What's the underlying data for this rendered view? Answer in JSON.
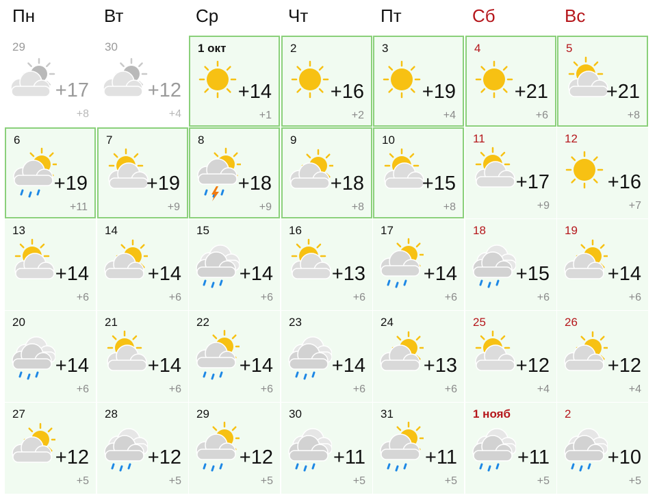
{
  "weekdays": [
    {
      "label": "Пн",
      "weekend": false
    },
    {
      "label": "Вт",
      "weekend": false
    },
    {
      "label": "Ср",
      "weekend": false
    },
    {
      "label": "Чт",
      "weekend": false
    },
    {
      "label": "Пт",
      "weekend": false
    },
    {
      "label": "Сб",
      "weekend": true
    },
    {
      "label": "Вс",
      "weekend": true
    }
  ],
  "colors": {
    "weekend": "#b5161b",
    "highlight_border": "#8ad07a",
    "cell_bg": "#f1fbf1",
    "sun": "#f7c113",
    "rain": "#1e88e5",
    "lightning": "#f07a10"
  },
  "days": [
    {
      "date": "29",
      "icon": "partly-cloudy-icon",
      "max": "+17",
      "min": "+8",
      "past": true
    },
    {
      "date": "30",
      "icon": "partly-cloudy-icon",
      "max": "+12",
      "min": "+4",
      "past": true
    },
    {
      "date": "1 окт",
      "icon": "sun-icon",
      "max": "+14",
      "min": "+1",
      "bold": true,
      "highlight": true,
      "today": true
    },
    {
      "date": "2",
      "icon": "sun-icon",
      "max": "+16",
      "min": "+2",
      "highlight": true
    },
    {
      "date": "3",
      "icon": "sun-icon",
      "max": "+19",
      "min": "+4",
      "highlight": true
    },
    {
      "date": "4",
      "icon": "sun-icon",
      "max": "+21",
      "min": "+6",
      "weekend": true,
      "highlight": true
    },
    {
      "date": "5",
      "icon": "sun-cloud-icon",
      "max": "+21",
      "min": "+8",
      "weekend": true,
      "highlight": true
    },
    {
      "date": "6",
      "icon": "cloud-sun-rain-icon",
      "max": "+19",
      "min": "+11",
      "highlight": true
    },
    {
      "date": "7",
      "icon": "sun-cloud-icon",
      "max": "+19",
      "min": "+9",
      "highlight": true
    },
    {
      "date": "8",
      "icon": "cloud-sun-thunder-rain-icon",
      "max": "+18",
      "min": "+9",
      "highlight": true
    },
    {
      "date": "9",
      "icon": "cloud-sun-icon",
      "max": "+18",
      "min": "+8",
      "highlight": true
    },
    {
      "date": "10",
      "icon": "sun-cloud-icon",
      "max": "+15",
      "min": "+8",
      "highlight": true
    },
    {
      "date": "11",
      "icon": "sun-cloud-icon",
      "max": "+17",
      "min": "+9",
      "weekend": true
    },
    {
      "date": "12",
      "icon": "sun-icon",
      "max": "+16",
      "min": "+7",
      "weekend": true
    },
    {
      "date": "13",
      "icon": "sun-cloud-icon",
      "max": "+14",
      "min": "+6"
    },
    {
      "date": "14",
      "icon": "cloud-sun-icon",
      "max": "+14",
      "min": "+6"
    },
    {
      "date": "15",
      "icon": "cloud-rain-icon",
      "max": "+14",
      "min": "+6"
    },
    {
      "date": "16",
      "icon": "sun-cloud-icon",
      "max": "+13",
      "min": "+6"
    },
    {
      "date": "17",
      "icon": "cloud-sun-rain-icon",
      "max": "+14",
      "min": "+6"
    },
    {
      "date": "18",
      "icon": "cloud-rain-icon",
      "max": "+15",
      "min": "+6",
      "weekend": true
    },
    {
      "date": "19",
      "icon": "cloud-sun-icon",
      "max": "+14",
      "min": "+6",
      "weekend": true
    },
    {
      "date": "20",
      "icon": "cloud-rain-icon",
      "max": "+14",
      "min": "+6"
    },
    {
      "date": "21",
      "icon": "sun-cloud-icon",
      "max": "+14",
      "min": "+6"
    },
    {
      "date": "22",
      "icon": "cloud-sun-rain-icon",
      "max": "+14",
      "min": "+6"
    },
    {
      "date": "23",
      "icon": "cloud-rain-icon",
      "max": "+14",
      "min": "+6"
    },
    {
      "date": "24",
      "icon": "cloud-sun-icon",
      "max": "+13",
      "min": "+6"
    },
    {
      "date": "25",
      "icon": "sun-cloud-icon",
      "max": "+12",
      "min": "+4",
      "weekend": true
    },
    {
      "date": "26",
      "icon": "cloud-sun-icon",
      "max": "+12",
      "min": "+4",
      "weekend": true
    },
    {
      "date": "27",
      "icon": "cloud-sun-icon",
      "max": "+12",
      "min": "+5"
    },
    {
      "date": "28",
      "icon": "cloud-rain-icon",
      "max": "+12",
      "min": "+5"
    },
    {
      "date": "29",
      "icon": "cloud-sun-rain-icon",
      "max": "+12",
      "min": "+5"
    },
    {
      "date": "30",
      "icon": "cloud-rain-icon",
      "max": "+11",
      "min": "+5"
    },
    {
      "date": "31",
      "icon": "cloud-sun-rain-icon",
      "max": "+11",
      "min": "+5"
    },
    {
      "date": "1 нояб",
      "icon": "cloud-rain-icon",
      "max": "+11",
      "min": "+5",
      "weekend": true,
      "bold": true
    },
    {
      "date": "2",
      "icon": "cloud-rain-icon",
      "max": "+10",
      "min": "+5",
      "weekend": true
    }
  ]
}
